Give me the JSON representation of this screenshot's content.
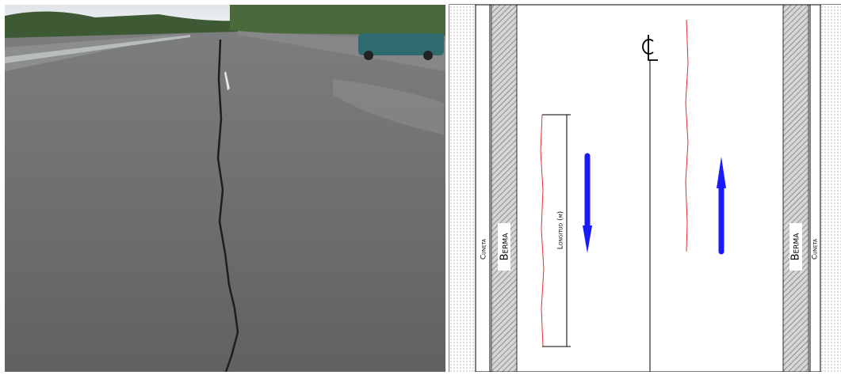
{
  "diagram": {
    "left_side": {
      "ditch": "Cuneta",
      "berm": "Berma"
    },
    "crack_dimension": "Longitud (m)",
    "right_side": {
      "berm": "Berma",
      "ditch": "Cuneta"
    }
  }
}
